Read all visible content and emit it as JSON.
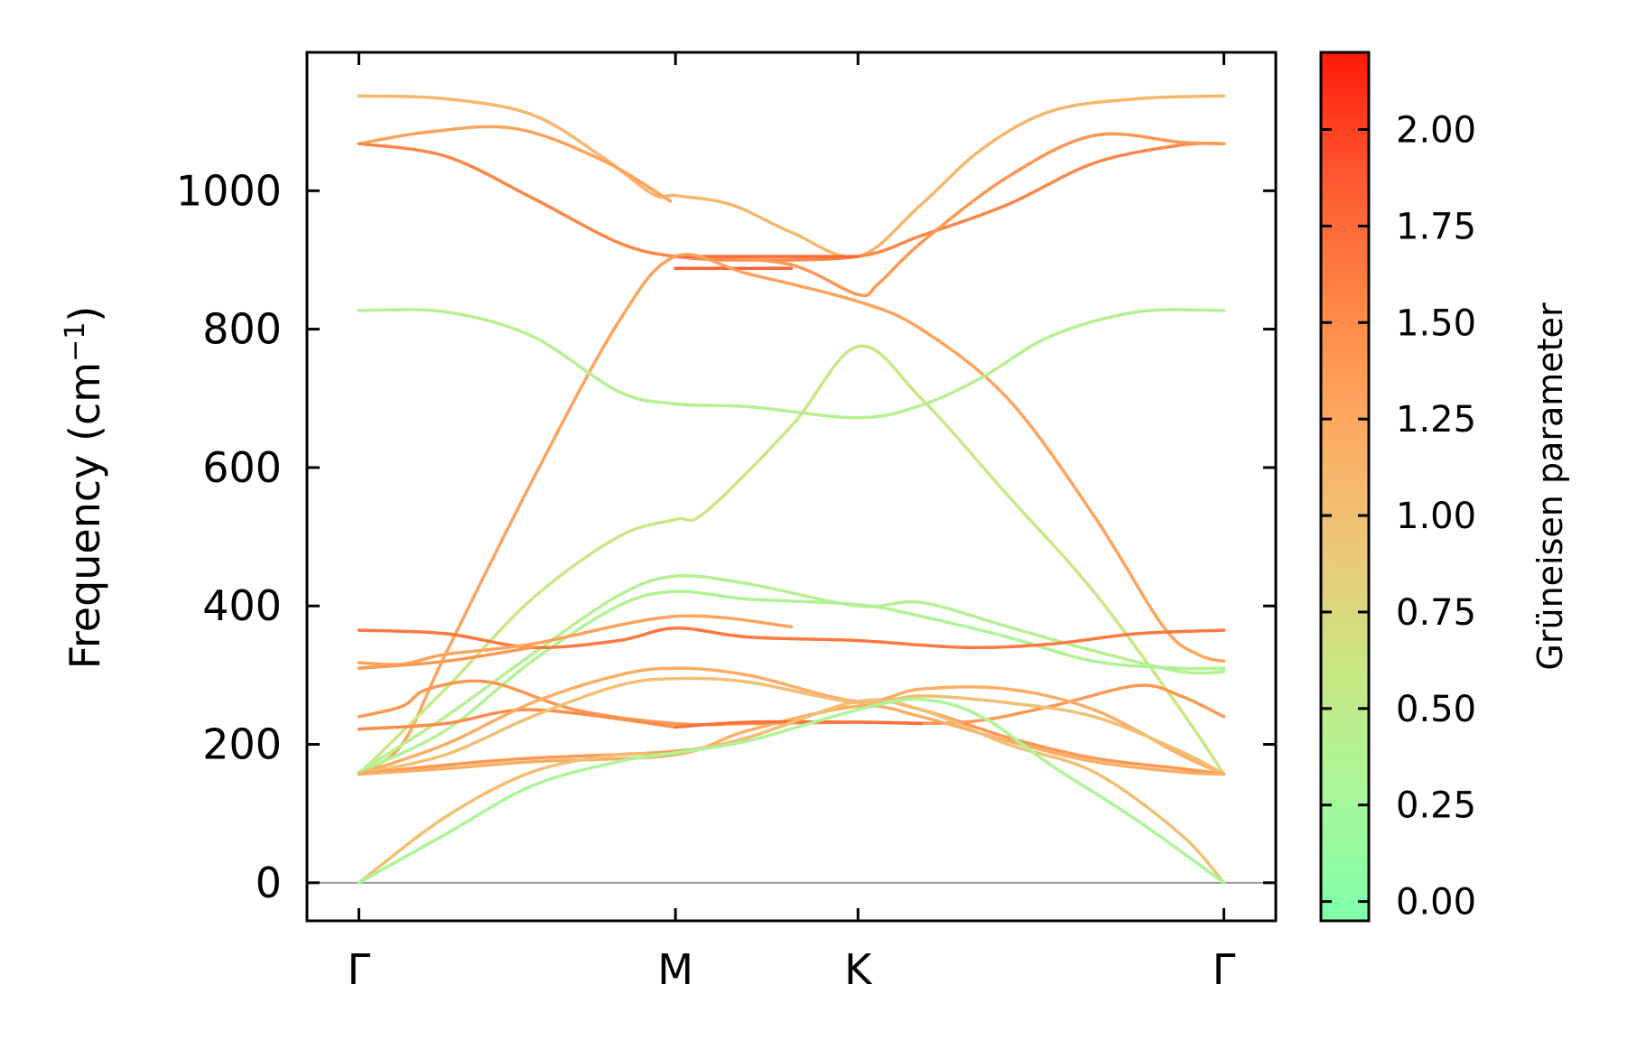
{
  "chart_data": {
    "type": "line",
    "title": "",
    "ylabel": "Frequency (cm",
    "ylabel_sup": "−1",
    "ylabel_close": ")",
    "ylim": [
      -55,
      1200
    ],
    "yticks": [
      0,
      200,
      400,
      600,
      800,
      1000
    ],
    "ytick_labels": [
      "0",
      "200",
      "400",
      "600",
      "800",
      "1000"
    ],
    "xlim": [
      -0.06,
      1.06
    ],
    "xticks": [
      0,
      0.366,
      0.577,
      1.0
    ],
    "xtick_labels": [
      "Γ",
      "M",
      "K",
      "Γ"
    ],
    "zero_line": 0,
    "colorbar": {
      "label": "Grüneisen parameter",
      "range": [
        -0.05,
        2.2
      ],
      "ticks": [
        0.0,
        0.25,
        0.5,
        0.75,
        1.0,
        1.25,
        1.5,
        1.75,
        2.0
      ],
      "tick_labels": [
        "0.00",
        "0.25",
        "0.50",
        "0.75",
        "1.00",
        "1.25",
        "1.50",
        "1.75",
        "2.00"
      ],
      "colormap": [
        "#7fffaa",
        "#a8f79a",
        "#c8e884",
        "#ecc77a",
        "#fdaa60",
        "#fe8545",
        "#ff5830",
        "#ff1a0a"
      ]
    },
    "series": [
      {
        "gamma": 1.1,
        "points": [
          [
            0,
            1137
          ],
          [
            0.1,
            1133
          ],
          [
            0.2,
            1110
          ],
          [
            0.28,
            1050
          ],
          [
            0.34,
            995
          ],
          [
            0.366,
            993
          ],
          [
            0.43,
            980
          ],
          [
            0.5,
            940
          ],
          [
            0.577,
            905
          ],
          [
            0.65,
            980
          ],
          [
            0.72,
            1060
          ],
          [
            0.8,
            1115
          ],
          [
            0.9,
            1133
          ],
          [
            1,
            1137
          ]
        ]
      },
      {
        "gamma": 1.3,
        "points": [
          [
            0,
            1068
          ],
          [
            0.08,
            1085
          ],
          [
            0.18,
            1090
          ],
          [
            0.28,
            1045
          ],
          [
            0.36,
            985
          ]
        ]
      },
      {
        "gamma": 1.55,
        "points": [
          [
            0,
            1068
          ],
          [
            0.1,
            1050
          ],
          [
            0.2,
            990
          ],
          [
            0.3,
            925
          ],
          [
            0.366,
            905
          ],
          [
            0.45,
            900
          ],
          [
            0.577,
            905
          ],
          [
            0.65,
            935
          ],
          [
            0.75,
            980
          ],
          [
            0.85,
            1040
          ],
          [
            0.95,
            1066
          ],
          [
            1,
            1068
          ]
        ]
      },
      {
        "gamma": 1.4,
        "points": [
          [
            0.4,
            905
          ],
          [
            0.5,
            893
          ],
          [
            0.577,
            850
          ],
          [
            0.6,
            865
          ],
          [
            0.65,
            925
          ],
          [
            0.75,
            1020
          ],
          [
            0.85,
            1080
          ],
          [
            0.95,
            1070
          ],
          [
            1,
            1068
          ]
        ]
      },
      {
        "gamma": 1.75,
        "points": [
          [
            0.366,
            905
          ],
          [
            0.45,
            905
          ],
          [
            0.577,
            905
          ]
        ]
      },
      {
        "gamma": 1.8,
        "points": [
          [
            0.366,
            888
          ],
          [
            0.45,
            888
          ],
          [
            0.5,
            888
          ]
        ]
      },
      {
        "gamma": 1.3,
        "points": [
          [
            0,
            157
          ],
          [
            0.05,
            200
          ],
          [
            0.1,
            330
          ],
          [
            0.2,
            580
          ],
          [
            0.3,
            810
          ],
          [
            0.366,
            905
          ],
          [
            0.45,
            880
          ],
          [
            0.577,
            840
          ],
          [
            0.65,
            800
          ],
          [
            0.75,
            700
          ],
          [
            0.85,
            530
          ],
          [
            0.93,
            370
          ],
          [
            0.97,
            330
          ],
          [
            1,
            320
          ]
        ]
      },
      {
        "gamma": 0.4,
        "points": [
          [
            0,
            827
          ],
          [
            0.1,
            825
          ],
          [
            0.2,
            790
          ],
          [
            0.3,
            710
          ],
          [
            0.366,
            692
          ],
          [
            0.45,
            688
          ],
          [
            0.577,
            672
          ],
          [
            0.65,
            690
          ],
          [
            0.72,
            730
          ],
          [
            0.8,
            790
          ],
          [
            0.9,
            825
          ],
          [
            1,
            827
          ]
        ]
      },
      {
        "gamma": 0.6,
        "points": [
          [
            0,
            157
          ],
          [
            0.1,
            280
          ],
          [
            0.2,
            410
          ],
          [
            0.3,
            500
          ],
          [
            0.366,
            525
          ],
          [
            0.4,
            535
          ],
          [
            0.5,
            660
          ],
          [
            0.577,
            775
          ],
          [
            0.65,
            700
          ],
          [
            0.75,
            560
          ],
          [
            0.85,
            420
          ],
          [
            0.95,
            250
          ],
          [
            1,
            157
          ]
        ]
      },
      {
        "gamma": 0.4,
        "points": [
          [
            0,
            160
          ],
          [
            0.1,
            240
          ],
          [
            0.2,
            330
          ],
          [
            0.3,
            415
          ],
          [
            0.366,
            443
          ],
          [
            0.45,
            432
          ],
          [
            0.577,
            400
          ],
          [
            0.65,
            405
          ],
          [
            0.75,
            370
          ],
          [
            0.85,
            335
          ],
          [
            0.95,
            305
          ],
          [
            1,
            305
          ]
        ]
      },
      {
        "gamma": 0.35,
        "points": [
          [
            0,
            160
          ],
          [
            0.1,
            220
          ],
          [
            0.2,
            320
          ],
          [
            0.3,
            400
          ],
          [
            0.366,
            421
          ],
          [
            0.45,
            410
          ],
          [
            0.577,
            402
          ],
          [
            0.65,
            385
          ],
          [
            0.75,
            355
          ],
          [
            0.85,
            320
          ],
          [
            0.95,
            310
          ],
          [
            1,
            310
          ]
        ]
      },
      {
        "gamma": 1.65,
        "points": [
          [
            0,
            365
          ],
          [
            0.1,
            360
          ],
          [
            0.2,
            340
          ],
          [
            0.3,
            350
          ],
          [
            0.366,
            368
          ],
          [
            0.45,
            355
          ],
          [
            0.577,
            350
          ],
          [
            0.7,
            340
          ],
          [
            0.8,
            345
          ],
          [
            0.9,
            360
          ],
          [
            1,
            365
          ]
        ]
      },
      {
        "gamma": 1.3,
        "points": [
          [
            0,
            318
          ],
          [
            0.05,
            316
          ],
          [
            0.1,
            330
          ],
          [
            0.2,
            345
          ],
          [
            0.366,
            385
          ],
          [
            0.5,
            370
          ]
        ]
      },
      {
        "gamma": 1.4,
        "points": [
          [
            0,
            310
          ],
          [
            0.1,
            320
          ],
          [
            0.2,
            340
          ]
        ]
      },
      {
        "gamma": 1.4,
        "points": [
          [
            0,
            240
          ],
          [
            0.05,
            255
          ],
          [
            0.08,
            280
          ],
          [
            0.15,
            290
          ],
          [
            0.25,
            250
          ],
          [
            0.366,
            230
          ],
          [
            0.45,
            230
          ],
          [
            0.577,
            232
          ],
          [
            0.7,
            232
          ],
          [
            0.8,
            255
          ],
          [
            0.9,
            285
          ],
          [
            0.95,
            270
          ],
          [
            1,
            240
          ]
        ]
      },
      {
        "gamma": 1.5,
        "points": [
          [
            0,
            222
          ],
          [
            0.1,
            230
          ],
          [
            0.2,
            250
          ],
          [
            0.366,
            225
          ]
        ]
      },
      {
        "gamma": 1.2,
        "points": [
          [
            0,
            157
          ],
          [
            0.1,
            200
          ],
          [
            0.2,
            260
          ],
          [
            0.3,
            300
          ],
          [
            0.366,
            310
          ],
          [
            0.45,
            300
          ],
          [
            0.577,
            262
          ],
          [
            0.65,
            280
          ],
          [
            0.75,
            280
          ],
          [
            0.85,
            250
          ],
          [
            0.95,
            185
          ],
          [
            1,
            157
          ]
        ]
      },
      {
        "gamma": 1.0,
        "points": [
          [
            0,
            157
          ],
          [
            0.1,
            185
          ],
          [
            0.2,
            240
          ],
          [
            0.3,
            285
          ],
          [
            0.366,
            295
          ],
          [
            0.45,
            290
          ],
          [
            0.577,
            260
          ],
          [
            0.65,
            270
          ],
          [
            0.75,
            260
          ],
          [
            0.85,
            240
          ],
          [
            0.95,
            190
          ],
          [
            1,
            157
          ]
        ]
      },
      {
        "gamma": 1.4,
        "points": [
          [
            0,
            157
          ],
          [
            0.1,
            170
          ],
          [
            0.2,
            180
          ],
          [
            0.366,
            190
          ],
          [
            0.45,
            210
          ],
          [
            0.577,
            262
          ],
          [
            0.65,
            250
          ],
          [
            0.75,
            210
          ],
          [
            0.85,
            180
          ],
          [
            0.95,
            165
          ],
          [
            1,
            157
          ]
        ]
      },
      {
        "gamma": 1.2,
        "points": [
          [
            0,
            157
          ],
          [
            0.1,
            165
          ],
          [
            0.2,
            175
          ],
          [
            0.366,
            185
          ],
          [
            0.45,
            220
          ],
          [
            0.577,
            255
          ],
          [
            0.65,
            240
          ],
          [
            0.75,
            205
          ],
          [
            0.85,
            175
          ],
          [
            0.95,
            160
          ],
          [
            1,
            157
          ]
        ]
      },
      {
        "gamma": 1.7,
        "points": [
          [
            0.366,
            225
          ],
          [
            0.45,
            232
          ],
          [
            0.577,
            232
          ],
          [
            0.65,
            230
          ]
        ]
      },
      {
        "gamma": 1.0,
        "points": [
          [
            0,
            0
          ],
          [
            0.1,
            95
          ],
          [
            0.2,
            160
          ],
          [
            0.3,
            185
          ],
          [
            0.366,
            187
          ],
          [
            0.45,
            210
          ],
          [
            0.577,
            262
          ],
          [
            0.65,
            250
          ],
          [
            0.75,
            200
          ],
          [
            0.85,
            160
          ],
          [
            0.95,
            70
          ],
          [
            1,
            0
          ]
        ]
      },
      {
        "gamma": 0.3,
        "points": [
          [
            0,
            0
          ],
          [
            0.1,
            70
          ],
          [
            0.2,
            140
          ],
          [
            0.3,
            175
          ],
          [
            0.366,
            188
          ],
          [
            0.45,
            205
          ],
          [
            0.577,
            250
          ],
          [
            0.65,
            265
          ],
          [
            0.72,
            240
          ],
          [
            0.8,
            170
          ],
          [
            0.9,
            90
          ],
          [
            1,
            0
          ]
        ]
      }
    ]
  }
}
